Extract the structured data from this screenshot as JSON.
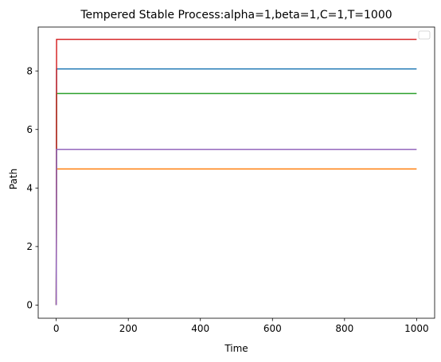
{
  "chart_data": {
    "type": "line",
    "title": "Tempered Stable Process:alpha=1,beta=1,C=1,T=1000",
    "xlabel": "Time",
    "ylabel": "Path",
    "xlim": [
      -50,
      1050
    ],
    "ylim": [
      -0.45,
      9.5
    ],
    "xticks": [
      0,
      200,
      400,
      600,
      800,
      1000
    ],
    "yticks": [
      0,
      2,
      4,
      6,
      8
    ],
    "grid": false,
    "legend": {
      "placement": "top-right",
      "entries": []
    },
    "series": [
      {
        "color": "#1f77b4",
        "x": [
          0,
          1,
          1000
        ],
        "y": [
          0,
          8.07,
          8.07
        ]
      },
      {
        "color": "#ff7f0e",
        "x": [
          0,
          1,
          1000
        ],
        "y": [
          0,
          4.65,
          4.65
        ]
      },
      {
        "color": "#2ca02c",
        "x": [
          0,
          1,
          1000
        ],
        "y": [
          0,
          7.23,
          7.23
        ]
      },
      {
        "color": "#d62728",
        "x": [
          0,
          1,
          1000
        ],
        "y": [
          0,
          9.08,
          9.08
        ]
      },
      {
        "color": "#9467bd",
        "x": [
          0,
          1,
          1000
        ],
        "y": [
          0,
          5.32,
          5.32
        ]
      }
    ]
  }
}
